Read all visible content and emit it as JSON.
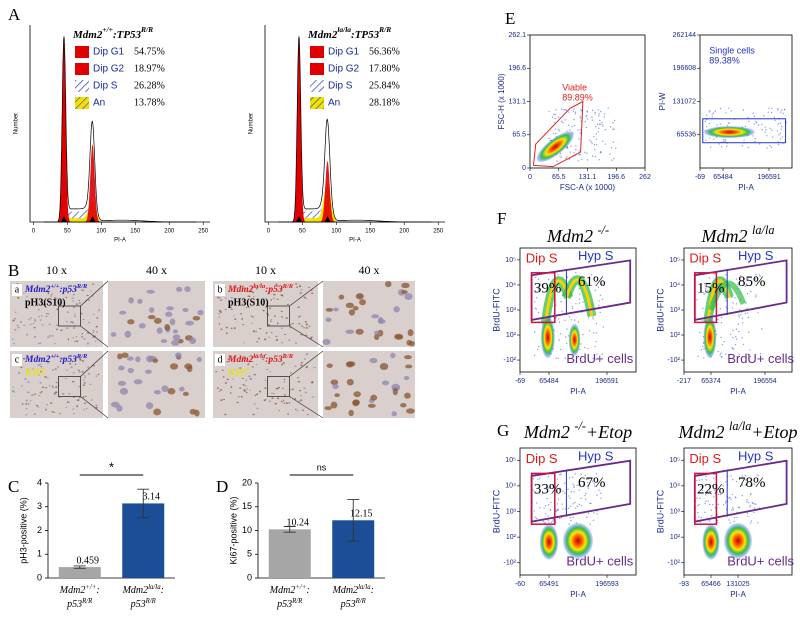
{
  "panel_labels": [
    "A",
    "B",
    "C",
    "D",
    "E",
    "F",
    "G"
  ],
  "panel_a": [
    {
      "title": [
        "Mdm2",
        {
          "sup": "+/+"
        },
        ":TP53",
        {
          "sup": "R/R"
        }
      ],
      "legend": [
        {
          "name": "Dip G1",
          "value": "54.75%",
          "color": "#e00000"
        },
        {
          "name": "Dip G2",
          "value": "18.97%",
          "color": "#e00000"
        },
        {
          "name": "Dip S",
          "value": "26.28%",
          "color": "#2a3cc0",
          "hatch": true
        },
        {
          "name": "An",
          "value": "13.78%",
          "color": "#f2e200",
          "hatch": true
        }
      ],
      "xlabel": "PI-A",
      "ylabel": "Number",
      "xlim": [
        -5,
        260
      ],
      "xticks": [
        0,
        50,
        100,
        150,
        200,
        250
      ]
    },
    {
      "title": [
        "Mdm2",
        {
          "sup": "la/la"
        },
        ":TP53",
        {
          "sup": "R/R"
        }
      ],
      "legend": [
        {
          "name": "Dip G1",
          "value": "56.36%",
          "color": "#e00000"
        },
        {
          "name": "Dip G2",
          "value": "17.80%",
          "color": "#e00000"
        },
        {
          "name": "Dip S",
          "value": "25.84%",
          "color": "#2a3cc0",
          "hatch": true
        },
        {
          "name": "An",
          "value": "28.18%",
          "color": "#f2e200",
          "hatch": true
        }
      ],
      "xlabel": "PI-A",
      "ylabel": "Number",
      "xlim": [
        -5,
        260
      ],
      "xticks": [
        0,
        50,
        100,
        150,
        200,
        250
      ]
    }
  ],
  "panel_b": {
    "magnifications": [
      "10 x",
      "40 x",
      "10 x",
      "40 x"
    ],
    "tiles": [
      {
        "letter": "a",
        "genotype": [
          "Mdm2",
          {
            "sup": "+/+"
          },
          ":p53",
          {
            "sup": "R/R"
          }
        ],
        "genotype_color": "#2020d0",
        "stain": "pH3(S10)",
        "stain_color": "#000000"
      },
      {
        "letter": "b",
        "genotype": [
          "Mdm2",
          {
            "sup": "la/la"
          },
          ":p53",
          {
            "sup": "R/R"
          }
        ],
        "genotype_color": "#e01818",
        "stain": "pH3(S10)",
        "stain_color": "#000000"
      },
      {
        "letter": "c",
        "genotype": [
          "Mdm2",
          {
            "sup": "+/+"
          },
          ":p53",
          {
            "sup": "R/R"
          }
        ],
        "genotype_color": "#2020d0",
        "stain": "Ki67",
        "stain_color": "#e8e020"
      },
      {
        "letter": "d",
        "genotype": [
          "Mdm2",
          {
            "sup": "la/la"
          },
          ":p53",
          {
            "sup": "R/R"
          }
        ],
        "genotype_color": "#e01818",
        "stain": "Ki67",
        "stain_color": "#e8e020"
      }
    ]
  },
  "chart_data": [
    {
      "type": "bar",
      "ylabel": "pH3-positive (%)",
      "categories": [
        {
          "line1": [
            "Mdm2",
            {
              "sup": "+/+"
            },
            ":"
          ],
          "line2": [
            "p53",
            {
              "sup": "R/R"
            }
          ]
        },
        {
          "line1": [
            "Mdm2",
            {
              "sup": "la/la"
            },
            ":"
          ],
          "line2": [
            "p53",
            {
              "sup": "R/R"
            }
          ]
        }
      ],
      "values": [
        0.459,
        3.14
      ],
      "errors": [
        0.05,
        0.6
      ],
      "colors": [
        "#a6a6a6",
        "#1c4d97"
      ],
      "ylim": [
        0,
        4
      ],
      "yticks": [
        0,
        1,
        2,
        3,
        4
      ],
      "significance": "*"
    },
    {
      "type": "bar",
      "ylabel": "Ki67-positive (%)",
      "categories": [
        {
          "line1": [
            "Mdm2",
            {
              "sup": "+/+"
            },
            ":"
          ],
          "line2": [
            "p53",
            {
              "sup": "R/R"
            }
          ]
        },
        {
          "line1": [
            "Mdm2",
            {
              "sup": "la/la"
            },
            ":"
          ],
          "line2": [
            "p53",
            {
              "sup": "R/R"
            }
          ]
        }
      ],
      "values": [
        10.24,
        12.15
      ],
      "errors": [
        0.6,
        4.4
      ],
      "colors": [
        "#a6a6a6",
        "#1c4d97"
      ],
      "ylim": [
        0,
        20
      ],
      "yticks": [
        0,
        5,
        10,
        15,
        20
      ],
      "significance": "ns"
    }
  ],
  "panel_e": [
    {
      "ylabel": "FSC-H (x 1000)",
      "xlabel": "FSC-A (x 1000)",
      "xlim": [
        0,
        262
      ],
      "ylim": [
        0,
        262.1
      ],
      "xticks": [
        0,
        65.5,
        131.1,
        196.6,
        262
      ],
      "yticks": [
        0,
        65.5,
        131.1,
        196.6,
        262.1
      ],
      "gate": "Viable",
      "percent": "89.89%",
      "gate_color": "#e02020"
    },
    {
      "ylabel": "PI-W",
      "xlabel": "PI-A",
      "xlim": [
        -69,
        262144
      ],
      "ylim": [
        0,
        262144
      ],
      "xticks": [
        -69,
        65484,
        196591
      ],
      "yticks": [
        65536,
        131072,
        196608,
        262144
      ],
      "gate": "Single cells",
      "percent": "89.38%",
      "gate_color": "#2233cc"
    }
  ],
  "panel_f": [
    {
      "title": [
        "Mdm2 ",
        {
          "sup": "-/-"
        }
      ],
      "dip": "Dip S",
      "hyp": "Hyp S",
      "dip_pct": "39%",
      "hyp_pct": "61%",
      "cells": "BrdU+ cells",
      "ylabel": "BrdU-FITC",
      "xlabel": "PI-A",
      "xlim": [
        -69,
        262144
      ],
      "xticks": [
        -69,
        65484,
        196591
      ],
      "yscale": "symlog",
      "ylim": [
        -300,
        300000
      ],
      "yticks": [
        {
          "value": 100000,
          "label": "10⁵"
        },
        {
          "value": 10000,
          "label": "10⁴"
        },
        {
          "value": 1000,
          "label": "10³"
        },
        {
          "value": 100,
          "label": "10²"
        },
        {
          "value": -100,
          "label": "-10²"
        }
      ]
    },
    {
      "title": [
        "Mdm2 ",
        {
          "sup": "la/la"
        }
      ],
      "dip": "Dip S",
      "hyp": "Hyp S",
      "dip_pct": "15%",
      "hyp_pct": "85%",
      "cells": "BrdU+ cells",
      "ylabel": "BrdU-FITC",
      "xlabel": "PI-A",
      "xlim": [
        -217,
        262144
      ],
      "xticks": [
        -217,
        65374,
        196554
      ],
      "yscale": "symlog",
      "ylim": [
        -300,
        300000
      ],
      "yticks": [
        {
          "value": 100000,
          "label": "10⁵"
        },
        {
          "value": 10000,
          "label": "10⁴"
        },
        {
          "value": 1000,
          "label": "10³"
        },
        {
          "value": 100,
          "label": "10²"
        },
        {
          "value": -100,
          "label": "-10²"
        }
      ]
    }
  ],
  "panel_g": [
    {
      "title": [
        "Mdm2 ",
        {
          "sup": "-/-"
        },
        "+Etop"
      ],
      "dip": "Dip S",
      "hyp": "Hyp S",
      "dip_pct": "33%",
      "hyp_pct": "67%",
      "cells": "BrdU+ cells",
      "ylabel": "BrdU-FITC",
      "xlabel": "PI-A",
      "xlim": [
        -60,
        262144
      ],
      "xticks": [
        -60,
        65491,
        196593
      ],
      "yscale": "symlog",
      "ylim": [
        -300,
        300000
      ],
      "yticks": [
        {
          "value": 100000,
          "label": "10⁵"
        },
        {
          "value": 10000,
          "label": "10⁴"
        },
        {
          "value": 1000,
          "label": "10³"
        },
        {
          "value": 100,
          "label": "10²"
        },
        {
          "value": -100,
          "label": "-10²"
        }
      ]
    },
    {
      "title": [
        "Mdm2 ",
        {
          "sup": "la/la"
        },
        "+Etop"
      ],
      "dip": "Dip S",
      "hyp": "Hyp S",
      "dip_pct": "22%",
      "hyp_pct": "78%",
      "cells": "BrdU+ cells",
      "ylabel": "BrdU-FITC",
      "xlabel": "PI-A",
      "xlim": [
        -93,
        262144
      ],
      "xticks": [
        -93,
        65466,
        131025
      ],
      "yscale": "symlog",
      "ylim": [
        -300,
        300000
      ],
      "yticks": [
        {
          "value": 100000,
          "label": "10⁵"
        },
        {
          "value": 10000,
          "label": "10⁴"
        },
        {
          "value": 1000,
          "label": "10³"
        },
        {
          "value": 100,
          "label": "10²"
        },
        {
          "value": -100,
          "label": "-10²"
        }
      ]
    }
  ]
}
